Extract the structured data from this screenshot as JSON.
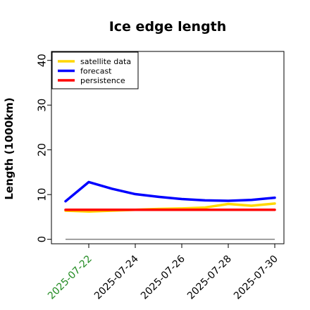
{
  "chart_data": {
    "type": "line",
    "title": "Ice edge length",
    "xlabel": "",
    "ylabel": "Length (1000km)",
    "ylim": [
      -1,
      42
    ],
    "xlim": [
      "2025-07-20",
      "2025-07-30"
    ],
    "yticks": [
      "0",
      "10",
      "20",
      "30",
      "40"
    ],
    "xticks": [
      "2025-07-22",
      "2025-07-24",
      "2025-07-26",
      "2025-07-28",
      "2025-07-30"
    ],
    "xtick_colors": [
      "#228B22",
      "#000000",
      "#000000",
      "#000000",
      "#000000"
    ],
    "x": [
      "2025-07-21",
      "2025-07-22",
      "2025-07-23",
      "2025-07-24",
      "2025-07-25",
      "2025-07-26",
      "2025-07-27",
      "2025-07-28",
      "2025-07-29",
      "2025-07-30"
    ],
    "series": [
      {
        "name": "satellite data",
        "color": "#FFD700",
        "values": [
          6.4,
          6.2,
          6.4,
          6.6,
          6.8,
          6.9,
          7.1,
          7.9,
          7.5,
          8.0
        ]
      },
      {
        "name": "forecast",
        "color": "#0000FF",
        "values": [
          8.5,
          12.8,
          11.3,
          10.1,
          9.5,
          9.0,
          8.7,
          8.6,
          8.8,
          9.3
        ]
      },
      {
        "name": "persistence",
        "color": "#FF0000",
        "values": [
          6.6,
          6.6,
          6.6,
          6.6,
          6.6,
          6.6,
          6.6,
          6.6,
          6.6,
          6.6
        ]
      }
    ],
    "reference_line": {
      "y": 0,
      "color": "#808080"
    },
    "legend": "top-left",
    "grid": false
  }
}
